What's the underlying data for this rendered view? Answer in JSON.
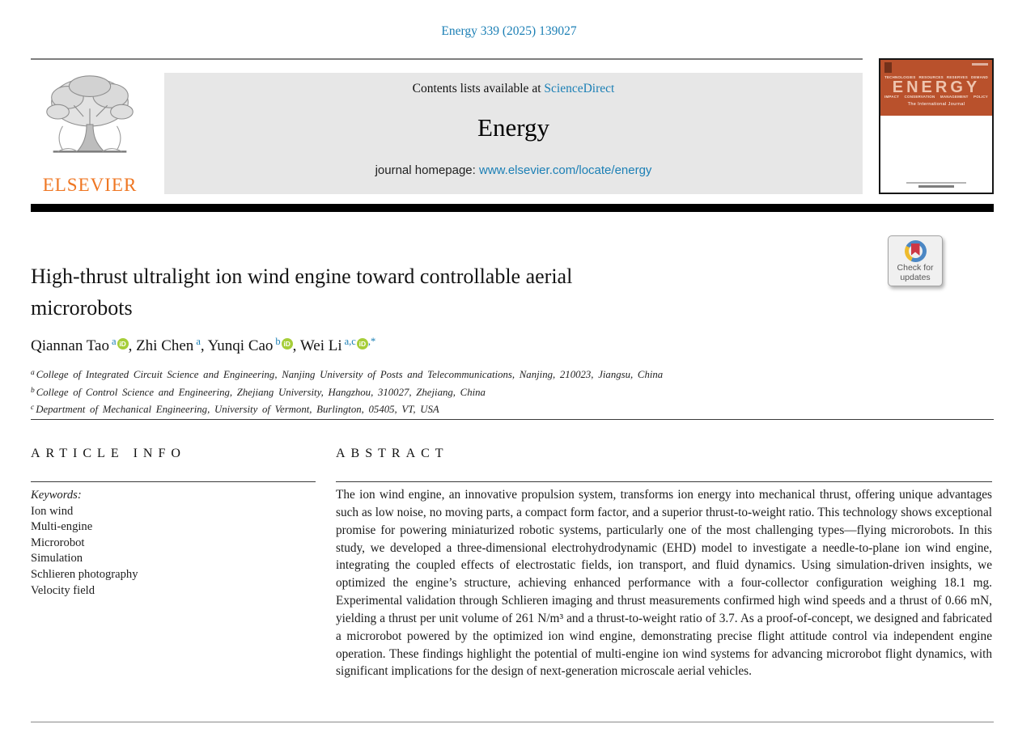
{
  "page": {
    "citation": "Energy 339 (2025) 139027"
  },
  "header": {
    "contents_prefix": "Contents lists available at ",
    "sciencedirect_link": "ScienceDirect",
    "journal_title": "Energy",
    "homepage_label": "journal homepage: ",
    "homepage_link": "www.elsevier.com/locate/energy",
    "publisher_name": "ELSEVIER"
  },
  "cover": {
    "top_words": [
      "TECHNOLOGIES",
      "RESOURCES",
      "RESERVES",
      "DEMAND"
    ],
    "title": "ENERGY",
    "bottom_words": [
      "IMPACT",
      "CONSERVATION",
      "MANAGEMENT",
      "POLICY"
    ],
    "subtitle": "The International Journal"
  },
  "badge": {
    "line1": "Check for",
    "line2": "updates"
  },
  "icons": {
    "orcid_label": "iD"
  },
  "article": {
    "title_lines": [
      "High-thrust ultralight ion wind engine toward controllable aerial",
      "microrobots"
    ],
    "authors": [
      {
        "name": "Qiannan Tao",
        "sup": "a",
        "orcid": true,
        "sup_after": ""
      },
      {
        "name": "Zhi Chen",
        "sup": "a",
        "orcid": false,
        "sup_after": ""
      },
      {
        "name": "Yunqi Cao",
        "sup": "b",
        "orcid": true,
        "sup_after": ""
      },
      {
        "name": "Wei Li",
        "sup": "a,c",
        "orcid": true,
        "sup_after": ",*"
      }
    ],
    "author_separator": ", ",
    "affiliations": [
      {
        "marker": "a",
        "text": "College of Integrated Circuit Science and Engineering, Nanjing University of Posts and Telecommunications, Nanjing, 210023, Jiangsu, China"
      },
      {
        "marker": "b",
        "text": "College of Control Science and Engineering, Zhejiang University, Hangzhou, 310027, Zhejiang, China"
      },
      {
        "marker": "c",
        "text": "Department of Mechanical Engineering, University of Vermont, Burlington, 05405, VT, USA"
      }
    ]
  },
  "info": {
    "heading": "ARTICLE INFO",
    "keywords_label": "Keywords:",
    "keywords": [
      "Ion wind",
      "Multi-engine",
      "Microrobot",
      "Simulation",
      "Schlieren photography",
      "Velocity field"
    ]
  },
  "abstract": {
    "heading": "ABSTRACT",
    "text": "The ion wind engine, an innovative propulsion system, transforms ion energy into mechanical thrust, offering unique advantages such as low noise, no moving parts, a compact form factor, and a superior thrust-to-weight ratio. This technology shows exceptional promise for powering miniaturized robotic systems, particularly one of the most challenging types—flying microrobots. In this study, we developed a three-dimensional electrohydrodynamic (EHD) model to investigate a needle-to-plane ion wind engine, integrating the coupled effects of electrostatic fields, ion transport, and fluid dynamics. Using simulation-driven insights, we optimized the engine’s structure, achieving enhanced performance with a four-collector configuration weighing 18.1 mg. Experimental validation through Schlieren imaging and thrust measurements confirmed high wind speeds and a thrust of 0.66 mN, yielding a thrust per unit volume of 261 N/m³ and a thrust-to-weight ratio of 3.7. As a proof-of-concept, we designed and fabricated a microrobot powered by the optimized ion wind engine, demonstrating precise flight attitude control via independent engine operation. These findings highlight the potential of multi-engine ion wind systems for advancing microrobot flight dynamics, with significant implications for the design of next-generation microscale aerial vehicles."
  }
}
